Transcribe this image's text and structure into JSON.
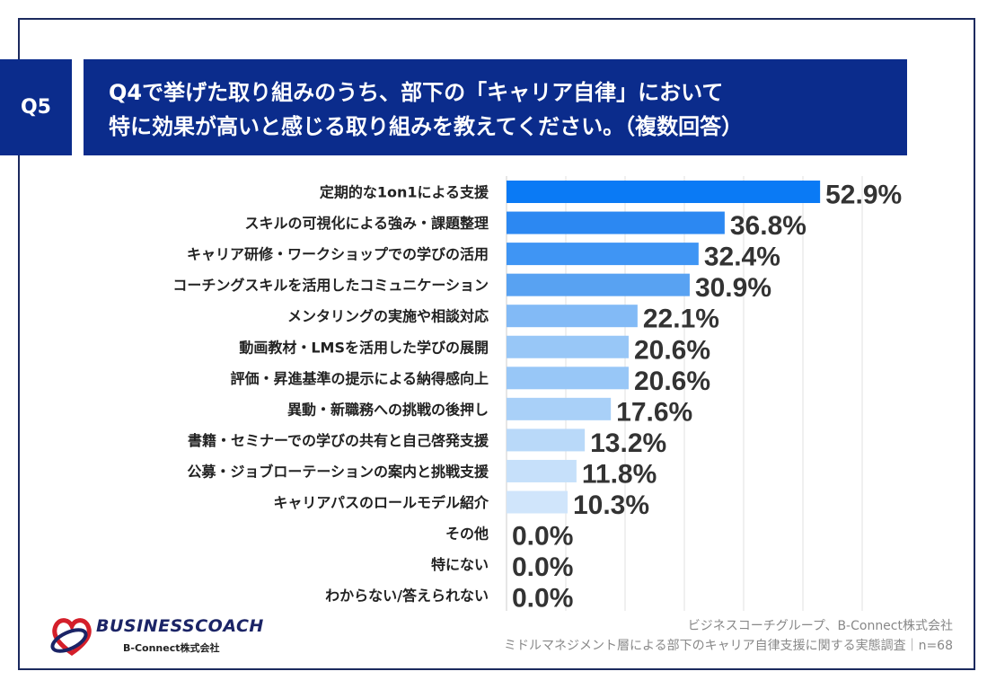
{
  "question": {
    "number": "Q5",
    "title_line1": "Q4で挙げた取り組みのうち、部下の「キャリア自律」において",
    "title_line2": "特に効果が高いと感じる取り組みを教えてください。（複数回答）"
  },
  "chart_data": {
    "type": "bar",
    "orientation": "horizontal",
    "title": "Q4で挙げた取り組みのうち、部下の「キャリア自律」において特に効果が高いと感じる取り組みを教えてください。（複数回答）",
    "categories": [
      "定期的な1on1による支援",
      "スキルの可視化による強み・課題整理",
      "キャリア研修・ワークショップでの学びの活用",
      "コーチングスキルを活用したコミュニケーション",
      "メンタリングの実施や相談対応",
      "動画教材・LMSを活用した学びの展開",
      "評価・昇進基準の提示による納得感向上",
      "異動・新職務への挑戦の後押し",
      "書籍・セミナーでの学びの共有と自己啓発支援",
      "公募・ジョブローテーションの案内と挑戦支援",
      "キャリアパスのロールモデル紹介",
      "その他",
      "特にない",
      "わからない/答えられない"
    ],
    "values": [
      52.9,
      36.8,
      32.4,
      30.9,
      22.1,
      20.6,
      20.6,
      17.6,
      13.2,
      11.8,
      10.3,
      0.0,
      0.0,
      0.0
    ],
    "labels": [
      "52.9%",
      "36.8%",
      "32.4%",
      "30.9%",
      "22.1%",
      "20.6%",
      "20.6%",
      "17.6%",
      "13.2%",
      "11.8%",
      "10.3%",
      "0.0%",
      "0.0%",
      "0.0%"
    ],
    "colors": [
      "#0a7af5",
      "#2c88f2",
      "#3f95f4",
      "#58a2f2",
      "#82baf6",
      "#98c7f7",
      "#98c7f7",
      "#a9d0f8",
      "#b9d9f9",
      "#c6e0fa",
      "#d0e5fb",
      "#d8eafb",
      "#d8eafb",
      "#d8eafb"
    ],
    "xlim": [
      0,
      60
    ],
    "grid_step": 10,
    "grid": true,
    "unit": "%"
  },
  "footer": {
    "logo_text": "BUSINESSCOACH",
    "logo_sub": "B-Connect株式会社",
    "source_line1": "ビジネスコーチグループ、B-Connect株式会社",
    "source_line2": "ミドルマネジメント層による部下のキャリア自律支援に関する実態調査｜n=68"
  }
}
